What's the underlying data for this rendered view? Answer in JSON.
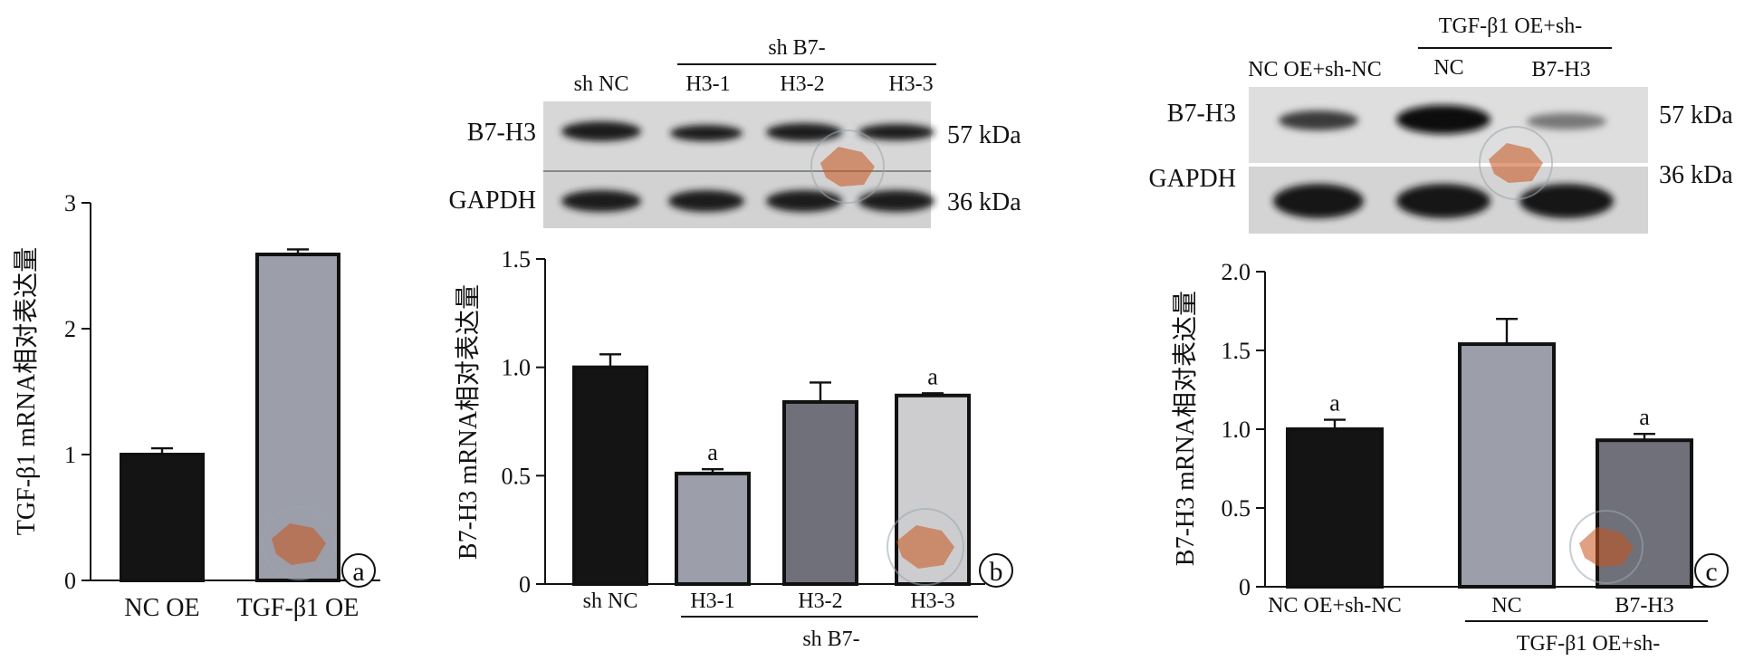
{
  "colors": {
    "bar_black": "#141414",
    "bar_gray_blue": "#9c9ea9",
    "bar_dark_gray": "#6f7079",
    "bar_light_gray": "#cdcdcf",
    "blot_bg": "#d7d7d7",
    "blot_band": "#1a1a1a",
    "watermark": "#c8541c"
  },
  "panel_a": {
    "panel_letter": "a"
  },
  "panel_b": {
    "panel_letter": "b",
    "blot": {
      "lane_labels": [
        "sh NC",
        "H3-1",
        "H3-2",
        "H3-3"
      ],
      "group_label": "sh B7-",
      "rows": [
        {
          "name": "B7-H3",
          "kda": "57 kDa",
          "band_intensity": [
            0.9,
            0.75,
            0.85,
            0.8
          ]
        },
        {
          "name": "GAPDH",
          "kda": "36 kDa",
          "band_intensity": [
            0.95,
            0.95,
            0.95,
            0.95
          ]
        }
      ]
    },
    "group_label_below": "sh B7-"
  },
  "panel_c": {
    "panel_letter": "c",
    "blot": {
      "lane_labels": [
        "NC OE+sh-NC",
        "NC",
        "B7-H3"
      ],
      "group_label": "TGF-β1  OE+sh-",
      "rows": [
        {
          "name": "B7-H3",
          "kda": "57 kDa",
          "band_intensity": [
            0.6,
            0.95,
            0.35
          ]
        },
        {
          "name": "GAPDH",
          "kda": "36 kDa",
          "band_intensity": [
            1.0,
            1.0,
            1.0
          ]
        }
      ]
    },
    "group_label_below": "TGF-β1 OE+sh-"
  },
  "chart_data": [
    {
      "type": "bar",
      "categories": [
        "NC OE",
        "TGF-β1 OE"
      ],
      "values": [
        1.0,
        2.59
      ],
      "errors": [
        0.05,
        0.04
      ],
      "significance": [
        "",
        ""
      ],
      "colors": [
        "#141414",
        "#9c9ea9"
      ],
      "title": "",
      "xlabel": "",
      "ylabel": "TGF-β1  mRNA相对表达量",
      "ylim": [
        0,
        3
      ],
      "yticks": [
        0,
        1,
        2,
        3
      ],
      "ytick_labels": [
        "0",
        "1",
        "2",
        "3"
      ],
      "grid": false
    },
    {
      "type": "bar",
      "categories": [
        "sh NC",
        "H3-1",
        "H3-2",
        "H3-3"
      ],
      "values": [
        1.0,
        0.51,
        0.84,
        0.87
      ],
      "errors": [
        0.06,
        0.02,
        0.09,
        0.01
      ],
      "significance": [
        "",
        "a",
        "",
        "a"
      ],
      "colors": [
        "#141414",
        "#9c9ea9",
        "#6f7079",
        "#cdcdcf"
      ],
      "title": "",
      "xlabel": "",
      "ylabel": "B7-H3 mRNA相对表达量",
      "ylim": [
        0,
        1.5
      ],
      "yticks": [
        0,
        0.5,
        1.0,
        1.5
      ],
      "ytick_labels": [
        "0",
        "0.5",
        "1.0",
        "1.5"
      ],
      "grid": false
    },
    {
      "type": "bar",
      "categories": [
        "NC OE+sh-NC",
        "NC",
        "B7-H3"
      ],
      "values": [
        1.0,
        1.54,
        0.93
      ],
      "errors": [
        0.06,
        0.16,
        0.04
      ],
      "significance": [
        "a",
        "",
        "a"
      ],
      "colors": [
        "#141414",
        "#9c9ea9",
        "#6f7079"
      ],
      "title": "",
      "xlabel": "",
      "ylabel": "B7-H3 mRNA相对表达量",
      "ylim": [
        0,
        2.0
      ],
      "yticks": [
        0,
        0.5,
        1.0,
        1.5,
        2.0
      ],
      "ytick_labels": [
        "0",
        "0.5",
        "1.0",
        "1.5",
        "2.0"
      ],
      "grid": false
    }
  ]
}
